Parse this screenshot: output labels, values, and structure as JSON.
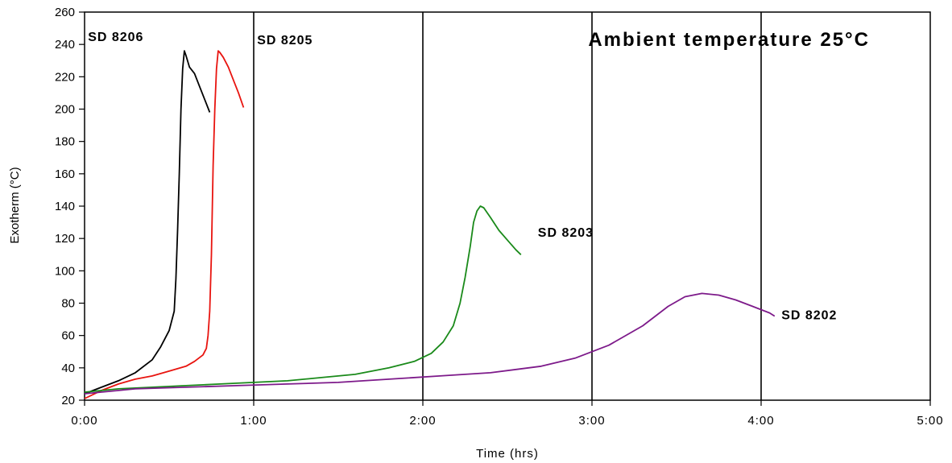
{
  "chart_data": {
    "type": "line",
    "title": "Ambient temperature 25°C",
    "xlabel": "Time (hrs)",
    "ylabel": "Exotherm (°C)",
    "x_unit": "hours",
    "xlim": [
      0,
      5
    ],
    "ylim": [
      20,
      260
    ],
    "x_tick_labels": [
      "0:00",
      "1:00",
      "2:00",
      "3:00",
      "4:00",
      "5:00"
    ],
    "y_ticks": [
      20,
      40,
      60,
      80,
      100,
      120,
      140,
      160,
      180,
      200,
      220,
      240,
      260
    ],
    "grid": false,
    "series": [
      {
        "name": "SD 8206",
        "color": "#000000",
        "x": [
          0.0,
          0.1,
          0.2,
          0.3,
          0.4,
          0.45,
          0.5,
          0.53,
          0.54,
          0.55,
          0.56,
          0.57,
          0.58,
          0.59,
          0.6,
          0.62,
          0.65,
          0.68,
          0.71,
          0.74
        ],
        "y": [
          24,
          28,
          32,
          37,
          45,
          53,
          63,
          75,
          95,
          125,
          160,
          200,
          225,
          236,
          233,
          226,
          222,
          214,
          206,
          198
        ]
      },
      {
        "name": "SD 8205",
        "color": "#e8140f",
        "x": [
          0.0,
          0.1,
          0.2,
          0.3,
          0.4,
          0.5,
          0.6,
          0.65,
          0.7,
          0.72,
          0.73,
          0.74,
          0.75,
          0.76,
          0.77,
          0.78,
          0.79,
          0.8,
          0.82,
          0.85,
          0.88,
          0.91,
          0.94
        ],
        "y": [
          21,
          26,
          30,
          33,
          35,
          38,
          41,
          44,
          48,
          52,
          60,
          75,
          110,
          165,
          200,
          225,
          236,
          235,
          232,
          226,
          218,
          210,
          201
        ]
      },
      {
        "name": "SD 8203",
        "color": "#1a8a1a",
        "x": [
          0.0,
          0.2,
          0.4,
          0.6,
          0.8,
          1.0,
          1.2,
          1.4,
          1.6,
          1.8,
          1.95,
          2.05,
          2.12,
          2.18,
          2.22,
          2.25,
          2.28,
          2.3,
          2.32,
          2.34,
          2.36,
          2.4,
          2.45,
          2.5,
          2.55,
          2.58
        ],
        "y": [
          25,
          27,
          28,
          29,
          30,
          31,
          32,
          34,
          36,
          40,
          44,
          49,
          56,
          66,
          80,
          96,
          115,
          130,
          137,
          140,
          139,
          133,
          125,
          119,
          113,
          110
        ]
      },
      {
        "name": "SD 8202",
        "color": "#7d1a8a",
        "x": [
          0.0,
          0.3,
          0.6,
          0.9,
          1.2,
          1.5,
          1.8,
          2.1,
          2.4,
          2.7,
          2.9,
          3.1,
          3.3,
          3.45,
          3.55,
          3.65,
          3.75,
          3.85,
          3.95,
          4.05,
          4.08
        ],
        "y": [
          24,
          27,
          28,
          29,
          30,
          31,
          33,
          35,
          37,
          41,
          46,
          54,
          66,
          78,
          84,
          86,
          85,
          82,
          78,
          74,
          72
        ]
      }
    ],
    "annotations": [
      {
        "text": "SD 8206",
        "x": 0.02,
        "y": 242
      },
      {
        "text": "SD 8205",
        "x": 1.02,
        "y": 240
      },
      {
        "text": "SD 8203",
        "x": 2.68,
        "y": 121
      },
      {
        "text": "SD 8202",
        "x": 4.12,
        "y": 70
      }
    ],
    "vertical_lines": [
      1,
      2,
      3,
      4
    ]
  }
}
